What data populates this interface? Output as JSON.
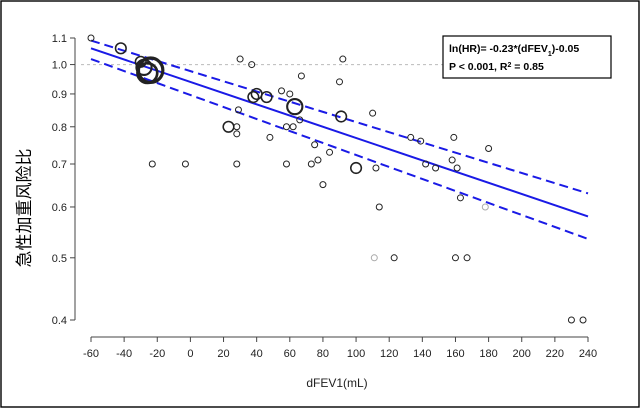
{
  "chart_data": {
    "type": "scatter",
    "title": "",
    "xlabel": "dFEV1(mL)",
    "ylabel": "急性加重风险比",
    "xlim": [
      -60,
      240
    ],
    "ylim": [
      0.4,
      1.1
    ],
    "yscale": "log",
    "x_ticks": [
      "-60",
      "-40",
      "-20",
      "0",
      "20",
      "40",
      "60",
      "80",
      "100",
      "120",
      "140",
      "160",
      "180",
      "200",
      "220",
      "240"
    ],
    "y_ticks": [
      "0.4",
      "0.5",
      "0.6",
      "0.7",
      "0.8",
      "0.9",
      "1.0",
      "1.1"
    ],
    "reference_line_y": 1.0,
    "annotation": {
      "line1": "ln(HR)= -0.23*(dFEV",
      "line1_sub": "1",
      "line1_end": ")-0.05",
      "line2": "P < 0.001, R",
      "line2_sup": "2",
      "line2_end": " = 0.85"
    },
    "fit_line": {
      "x": [
        -60,
        240
      ],
      "y": [
        1.06,
        0.58
      ]
    },
    "ci_upper": {
      "x": [
        -60,
        240
      ],
      "y": [
        1.09,
        0.63
      ]
    },
    "ci_lower": {
      "x": [
        -60,
        240
      ],
      "y": [
        1.02,
        0.535
      ]
    },
    "points": [
      {
        "x": -60,
        "y": 1.1,
        "w": 1
      },
      {
        "x": -42,
        "y": 1.06,
        "w": 2
      },
      {
        "x": -30,
        "y": 1.01,
        "w": 2
      },
      {
        "x": -28,
        "y": 0.99,
        "w": 3
      },
      {
        "x": -26,
        "y": 0.97,
        "w": 4
      },
      {
        "x": -24,
        "y": 0.98,
        "w": 5
      },
      {
        "x": -23,
        "y": 0.7,
        "w": 1
      },
      {
        "x": -3,
        "y": 0.7,
        "w": 1
      },
      {
        "x": 23,
        "y": 0.8,
        "w": 2
      },
      {
        "x": 28,
        "y": 0.8,
        "w": 1
      },
      {
        "x": 28,
        "y": 0.7,
        "w": 1
      },
      {
        "x": 28,
        "y": 0.78,
        "w": 1
      },
      {
        "x": 29,
        "y": 0.85,
        "w": 1
      },
      {
        "x": 30,
        "y": 1.02,
        "w": 1
      },
      {
        "x": 37,
        "y": 1.0,
        "w": 1
      },
      {
        "x": 38,
        "y": 0.89,
        "w": 2
      },
      {
        "x": 40,
        "y": 0.9,
        "w": 2
      },
      {
        "x": 46,
        "y": 0.89,
        "w": 2
      },
      {
        "x": 48,
        "y": 0.77,
        "w": 1
      },
      {
        "x": 55,
        "y": 0.91,
        "w": 1
      },
      {
        "x": 58,
        "y": 0.7,
        "w": 1
      },
      {
        "x": 58,
        "y": 0.8,
        "w": 1
      },
      {
        "x": 60,
        "y": 0.9,
        "w": 1
      },
      {
        "x": 62,
        "y": 0.8,
        "w": 1
      },
      {
        "x": 63,
        "y": 0.86,
        "w": 3
      },
      {
        "x": 66,
        "y": 0.82,
        "w": 1
      },
      {
        "x": 67,
        "y": 0.96,
        "w": 1
      },
      {
        "x": 73,
        "y": 0.7,
        "w": 1
      },
      {
        "x": 75,
        "y": 0.75,
        "w": 1
      },
      {
        "x": 77,
        "y": 0.71,
        "w": 1
      },
      {
        "x": 80,
        "y": 0.65,
        "w": 1
      },
      {
        "x": 84,
        "y": 0.73,
        "w": 1
      },
      {
        "x": 90,
        "y": 0.94,
        "w": 1
      },
      {
        "x": 91,
        "y": 0.83,
        "w": 2
      },
      {
        "x": 92,
        "y": 1.02,
        "w": 1
      },
      {
        "x": 100,
        "y": 0.69,
        "w": 2
      },
      {
        "x": 110,
        "y": 0.84,
        "w": 1
      },
      {
        "x": 111,
        "y": 0.5,
        "w": 1,
        "light": true
      },
      {
        "x": 112,
        "y": 0.69,
        "w": 1
      },
      {
        "x": 114,
        "y": 0.6,
        "w": 1
      },
      {
        "x": 123,
        "y": 0.5,
        "w": 1
      },
      {
        "x": 133,
        "y": 0.77,
        "w": 1
      },
      {
        "x": 139,
        "y": 0.76,
        "w": 1
      },
      {
        "x": 142,
        "y": 0.7,
        "w": 1
      },
      {
        "x": 148,
        "y": 0.69,
        "w": 1
      },
      {
        "x": 158,
        "y": 0.71,
        "w": 1
      },
      {
        "x": 159,
        "y": 0.77,
        "w": 1
      },
      {
        "x": 160,
        "y": 0.5,
        "w": 1
      },
      {
        "x": 161,
        "y": 0.69,
        "w": 1
      },
      {
        "x": 163,
        "y": 0.62,
        "w": 1
      },
      {
        "x": 167,
        "y": 0.5,
        "w": 1
      },
      {
        "x": 178,
        "y": 0.6,
        "w": 1,
        "light": true
      },
      {
        "x": 180,
        "y": 0.74,
        "w": 1
      },
      {
        "x": 230,
        "y": 0.4,
        "w": 1
      },
      {
        "x": 237,
        "y": 0.4,
        "w": 1
      }
    ]
  }
}
